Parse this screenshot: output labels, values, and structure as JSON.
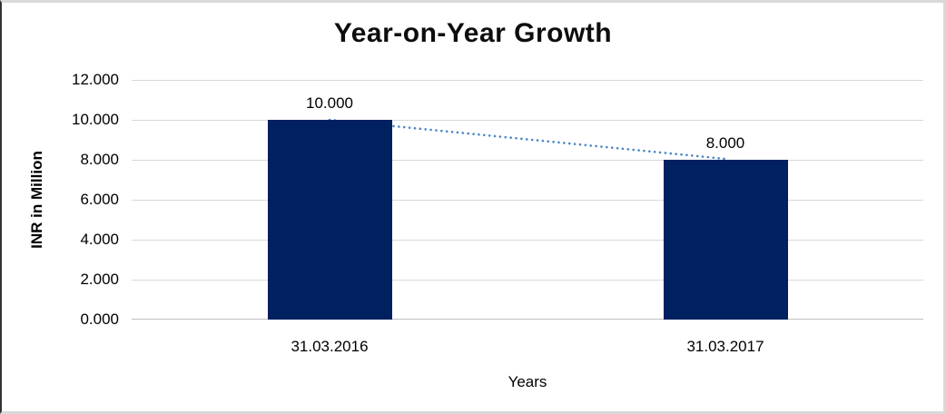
{
  "chart_data": {
    "type": "bar",
    "title": "Year-on-Year Growth",
    "xlabel": "Years",
    "ylabel": "INR in Million",
    "categories": [
      "31.03.2016",
      "31.03.2017"
    ],
    "values": [
      10,
      8
    ],
    "value_labels": [
      "10.000",
      "8.000"
    ],
    "ylim": [
      0,
      12
    ],
    "ytick_step": 2,
    "yticks": [
      {
        "value": 0,
        "label": "0.000"
      },
      {
        "value": 2,
        "label": "2.000"
      },
      {
        "value": 4,
        "label": "4.000"
      },
      {
        "value": 6,
        "label": "6.000"
      },
      {
        "value": 8,
        "label": "8.000"
      },
      {
        "value": 10,
        "label": "10.000"
      },
      {
        "value": 12,
        "label": "12.000"
      }
    ],
    "grid": true,
    "legend": false,
    "bar_color": "#002060",
    "gridline_color": "#d9d9d9",
    "axis_line_color": "#bfbfbf",
    "trendline": {
      "style": "dotted",
      "color": "#4a86c8",
      "connects": "bar tops"
    }
  }
}
